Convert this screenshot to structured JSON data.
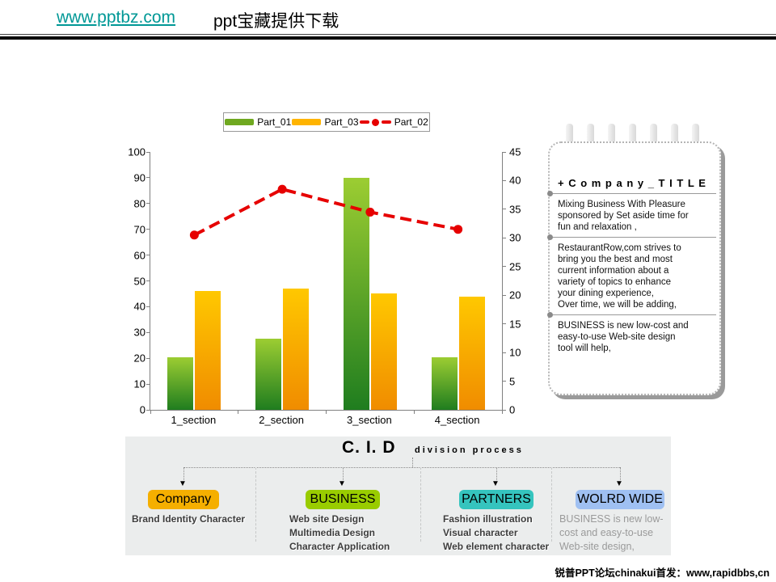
{
  "header": {
    "link": "www.pptbz.com",
    "subtitle": "ppt宝藏提供下载"
  },
  "chart_data": {
    "type": "bar",
    "title": "",
    "categories": [
      "1_section",
      "2_section",
      "3_section",
      "4_section"
    ],
    "series": [
      {
        "name": "Part_01",
        "kind": "bar",
        "axis": "left",
        "values": [
          20.5,
          27.5,
          90,
          20.5
        ],
        "color_top": "#9ccd32",
        "color_bottom": "#1f7d1f",
        "legend_color": "#6fa820"
      },
      {
        "name": "Part_03",
        "kind": "bar",
        "axis": "left",
        "values": [
          46,
          47,
          45,
          44
        ],
        "color_top": "#ffc800",
        "color_bottom": "#f08c00",
        "legend_color": "#ffb400"
      },
      {
        "name": "Part_02",
        "kind": "line",
        "axis": "right",
        "values": [
          30.5,
          38.5,
          34.5,
          31.5
        ],
        "color": "#e60000"
      }
    ],
    "left_axis": {
      "min": 0,
      "max": 100,
      "step": 10,
      "ticks": [
        "0",
        "10",
        "20",
        "30",
        "40",
        "50",
        "60",
        "70",
        "80",
        "90",
        "100"
      ]
    },
    "right_axis": {
      "min": 0,
      "max": 45,
      "step": 5,
      "ticks": [
        "0",
        "5",
        "10",
        "15",
        "20",
        "25",
        "30",
        "35",
        "40",
        "45"
      ]
    },
    "legend_position": "top",
    "grid": false
  },
  "notepad": {
    "title": "+ C o m p a n y _ T I T L E",
    "sections": [
      {
        "lines": [
          "Mixing Business With Pleasure",
          "sponsored by Set aside time for",
          "fun and relaxation ,"
        ]
      },
      {
        "lines": [
          "RestaurantRow,com strives to",
          "bring you the best and most",
          "current information about a",
          "variety of topics to enhance",
          "your dining experience,",
          "Over time, we will be adding,"
        ]
      },
      {
        "lines": [
          "BUSINESS is new low-cost and",
          "easy-to-use Web-site design",
          "tool will help,"
        ]
      }
    ]
  },
  "process": {
    "title_main": "C. I. D",
    "title_sub": "division process",
    "columns": [
      {
        "label": "Company",
        "color": "#f5af00",
        "muted": false,
        "items": [
          "Brand Identity Character"
        ]
      },
      {
        "label": "BUSINESS",
        "color": "#99cc00",
        "muted": false,
        "items": [
          "Web site Design",
          "Multimedia Design",
          "Character Application"
        ]
      },
      {
        "label": "PARTNERS",
        "color": "#35c4be",
        "muted": false,
        "items": [
          "Fashion illustration",
          "Visual character",
          "Web element character"
        ]
      },
      {
        "label": "WOLRD WIDE",
        "color": "#9fc0f2",
        "muted": true,
        "items": [
          "BUSINESS is new low-",
          "cost and easy-to-use",
          "Web-site design,"
        ]
      }
    ]
  },
  "footer": {
    "text": "锐普PPT论坛chinakui首发：www,rapidbbs,cn"
  }
}
